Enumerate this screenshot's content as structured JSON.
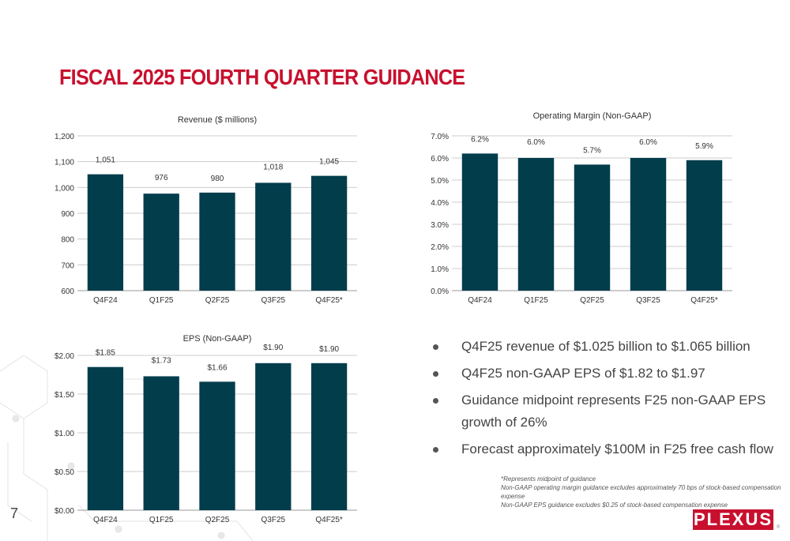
{
  "slide": {
    "title": "FISCAL 2025 FOURTH QUARTER GUIDANCE",
    "page_number": "7",
    "bullets": [
      "Q4F25 revenue of $1.025 billion to $1.065 billion",
      "Q4F25 non-GAAP EPS of $1.82 to $1.97",
      "Guidance midpoint represents F25 non-GAAP EPS growth of 26%",
      "Forecast approximately $100M in F25 free cash flow"
    ],
    "footnotes": [
      "*Represents midpoint of guidance",
      "Non-GAAP operating margin guidance excludes approximately 70 bps of stock-based compensation expense",
      "Non-GAAP EPS guidance excludes $0.25 of stock-based compensation expense"
    ],
    "logo_text": "PLEXUS",
    "logo_mark": "®",
    "colors": {
      "title": "#c8102e",
      "bar": "#023d4c",
      "logo": "#c8102e"
    }
  },
  "chart_data": [
    {
      "type": "bar",
      "title": "Revenue ($ millions)",
      "categories": [
        "Q4F24",
        "Q1F25",
        "Q2F25",
        "Q3F25",
        "Q4F25*"
      ],
      "values": [
        1051,
        976,
        980,
        1018,
        1045
      ],
      "data_labels": [
        "1,051",
        "976",
        "980",
        "1,018",
        "1,045"
      ],
      "ylim": [
        600,
        1200
      ],
      "yticks": [
        600,
        700,
        800,
        900,
        1000,
        1100,
        1200
      ],
      "ytick_labels": [
        "600",
        "700",
        "800",
        "900",
        "1,000",
        "1,100",
        "1,200"
      ],
      "grid": true
    },
    {
      "type": "bar",
      "title": "Operating Margin (Non-GAAP)",
      "categories": [
        "Q4F24",
        "Q1F25",
        "Q2F25",
        "Q3F25",
        "Q4F25*"
      ],
      "values": [
        6.2,
        6.0,
        5.7,
        6.0,
        5.9
      ],
      "data_labels": [
        "6.2%",
        "6.0%",
        "5.7%",
        "6.0%",
        "5.9%"
      ],
      "ylim": [
        0,
        7
      ],
      "yticks": [
        0,
        1,
        2,
        3,
        4,
        5,
        6,
        7
      ],
      "ytick_labels": [
        "0.0%",
        "1.0%",
        "2.0%",
        "3.0%",
        "4.0%",
        "5.0%",
        "6.0%",
        "7.0%"
      ],
      "grid": true
    },
    {
      "type": "bar",
      "title": "EPS (Non-GAAP)",
      "categories": [
        "Q4F24",
        "Q1F25",
        "Q2F25",
        "Q3F25",
        "Q4F25*"
      ],
      "values": [
        1.85,
        1.73,
        1.66,
        1.9,
        1.9
      ],
      "data_labels": [
        "$1.85",
        "$1.73",
        "$1.66",
        "$1.90",
        "$1.90"
      ],
      "ylim": [
        0,
        2
      ],
      "yticks": [
        0,
        0.5,
        1,
        1.5,
        2
      ],
      "ytick_labels": [
        "$0.00",
        "$0.50",
        "$1.00",
        "$1.50",
        "$2.00"
      ],
      "grid": true
    }
  ]
}
